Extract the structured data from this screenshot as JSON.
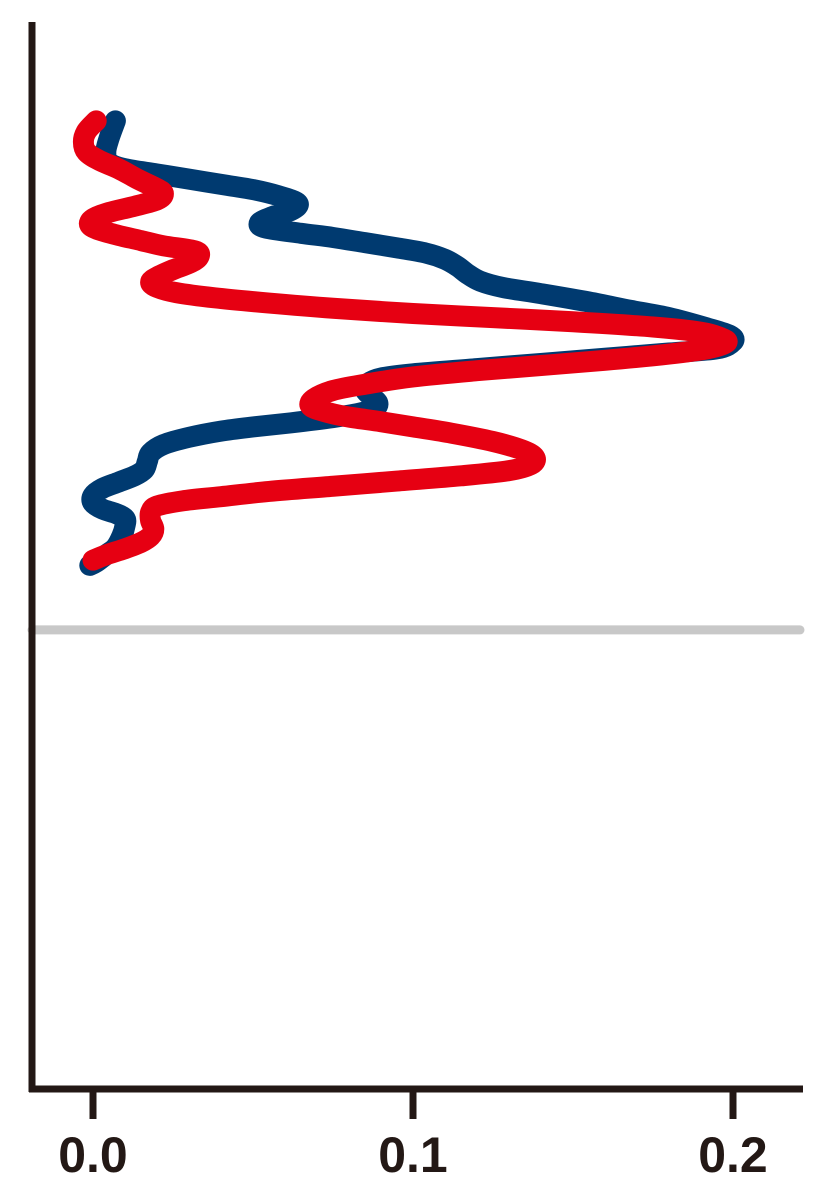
{
  "chart_data": {
    "type": "line",
    "orientation": "vertical-profile",
    "title": "",
    "xlabel": "",
    "ylabel": "",
    "xlim": [
      -0.018,
      0.222
    ],
    "ylim": [
      0,
      1
    ],
    "grid": false,
    "y_axis_ticks": false,
    "x_ticks": [
      0.0,
      0.1,
      0.2
    ],
    "x_tick_labels": [
      "0.0",
      "0.1",
      "0.2"
    ],
    "reference_line": {
      "orientation": "horizontal",
      "y": 0.441,
      "color": "#c8c8c8"
    },
    "series": [
      {
        "color": "#003a70",
        "points": [
          [
            0.007,
            0.93
          ],
          [
            0.005,
            0.913
          ],
          [
            0.004,
            0.9
          ],
          [
            0.005,
            0.89
          ],
          [
            0.01,
            0.884
          ],
          [
            0.02,
            0.879
          ],
          [
            0.03,
            0.874
          ],
          [
            0.042,
            0.868
          ],
          [
            0.05,
            0.864
          ],
          [
            0.058,
            0.858
          ],
          [
            0.064,
            0.851
          ],
          [
            0.062,
            0.844
          ],
          [
            0.056,
            0.838
          ],
          [
            0.052,
            0.832
          ],
          [
            0.054,
            0.827
          ],
          [
            0.065,
            0.822
          ],
          [
            0.075,
            0.818
          ],
          [
            0.085,
            0.813
          ],
          [
            0.095,
            0.808
          ],
          [
            0.104,
            0.803
          ],
          [
            0.11,
            0.797
          ],
          [
            0.114,
            0.79
          ],
          [
            0.117,
            0.783
          ],
          [
            0.121,
            0.776
          ],
          [
            0.128,
            0.77
          ],
          [
            0.14,
            0.764
          ],
          [
            0.155,
            0.756
          ],
          [
            0.168,
            0.748
          ],
          [
            0.18,
            0.741
          ],
          [
            0.192,
            0.731
          ],
          [
            0.199,
            0.724
          ],
          [
            0.2,
            0.718
          ],
          [
            0.195,
            0.711
          ],
          [
            0.18,
            0.707
          ],
          [
            0.16,
            0.702
          ],
          [
            0.14,
            0.697
          ],
          [
            0.12,
            0.692
          ],
          [
            0.1,
            0.687
          ],
          [
            0.09,
            0.683
          ],
          [
            0.086,
            0.678
          ],
          [
            0.085,
            0.672
          ],
          [
            0.087,
            0.665
          ],
          [
            0.089,
            0.659
          ],
          [
            0.088,
            0.654
          ],
          [
            0.083,
            0.649
          ],
          [
            0.075,
            0.645
          ],
          [
            0.062,
            0.64
          ],
          [
            0.05,
            0.636
          ],
          [
            0.04,
            0.632
          ],
          [
            0.03,
            0.626
          ],
          [
            0.022,
            0.619
          ],
          [
            0.018,
            0.611
          ],
          [
            0.017,
            0.603
          ],
          [
            0.016,
            0.595
          ],
          [
            0.013,
            0.589
          ],
          [
            0.008,
            0.583
          ],
          [
            0.003,
            0.577
          ],
          [
            0.0,
            0.57
          ],
          [
            0.0,
            0.563
          ],
          [
            0.003,
            0.557
          ],
          [
            0.007,
            0.553
          ],
          [
            0.01,
            0.548
          ],
          [
            0.01,
            0.541
          ],
          [
            0.009,
            0.531
          ],
          [
            0.007,
            0.52
          ],
          [
            0.004,
            0.513
          ],
          [
            0.001,
            0.506
          ],
          [
            -0.001,
            0.503
          ]
        ]
      },
      {
        "color": "#e60012",
        "points": [
          [
            0.001,
            0.93
          ],
          [
            -0.002,
            0.92
          ],
          [
            -0.003,
            0.91
          ],
          [
            -0.002,
            0.9
          ],
          [
            0.002,
            0.892
          ],
          [
            0.008,
            0.884
          ],
          [
            0.014,
            0.874
          ],
          [
            0.02,
            0.865
          ],
          [
            0.022,
            0.86
          ],
          [
            0.02,
            0.854
          ],
          [
            0.013,
            0.848
          ],
          [
            0.005,
            0.842
          ],
          [
            0.0,
            0.836
          ],
          [
            -0.001,
            0.83
          ],
          [
            0.002,
            0.825
          ],
          [
            0.008,
            0.82
          ],
          [
            0.015,
            0.815
          ],
          [
            0.022,
            0.81
          ],
          [
            0.032,
            0.805
          ],
          [
            0.033,
            0.799
          ],
          [
            0.03,
            0.793
          ],
          [
            0.025,
            0.787
          ],
          [
            0.02,
            0.78
          ],
          [
            0.018,
            0.775
          ],
          [
            0.02,
            0.77
          ],
          [
            0.026,
            0.765
          ],
          [
            0.038,
            0.76
          ],
          [
            0.055,
            0.755
          ],
          [
            0.075,
            0.75
          ],
          [
            0.1,
            0.745
          ],
          [
            0.125,
            0.741
          ],
          [
            0.15,
            0.737
          ],
          [
            0.175,
            0.732
          ],
          [
            0.19,
            0.727
          ],
          [
            0.196,
            0.722
          ],
          [
            0.198,
            0.717
          ],
          [
            0.192,
            0.711
          ],
          [
            0.18,
            0.706
          ],
          [
            0.16,
            0.7
          ],
          [
            0.14,
            0.695
          ],
          [
            0.12,
            0.69
          ],
          [
            0.1,
            0.684
          ],
          [
            0.085,
            0.677
          ],
          [
            0.075,
            0.671
          ],
          [
            0.069,
            0.663
          ],
          [
            0.068,
            0.656
          ],
          [
            0.072,
            0.651
          ],
          [
            0.079,
            0.646
          ],
          [
            0.09,
            0.641
          ],
          [
            0.1,
            0.636
          ],
          [
            0.112,
            0.63
          ],
          [
            0.125,
            0.622
          ],
          [
            0.134,
            0.614
          ],
          [
            0.138,
            0.607
          ],
          [
            0.137,
            0.6
          ],
          [
            0.13,
            0.594
          ],
          [
            0.115,
            0.589
          ],
          [
            0.095,
            0.584
          ],
          [
            0.075,
            0.579
          ],
          [
            0.055,
            0.574
          ],
          [
            0.04,
            0.569
          ],
          [
            0.028,
            0.565
          ],
          [
            0.02,
            0.56
          ],
          [
            0.018,
            0.554
          ],
          [
            0.018,
            0.546
          ],
          [
            0.019,
            0.538
          ],
          [
            0.018,
            0.531
          ],
          [
            0.015,
            0.525
          ],
          [
            0.01,
            0.519
          ],
          [
            0.004,
            0.513
          ],
          [
            0.0,
            0.508
          ]
        ]
      }
    ]
  }
}
